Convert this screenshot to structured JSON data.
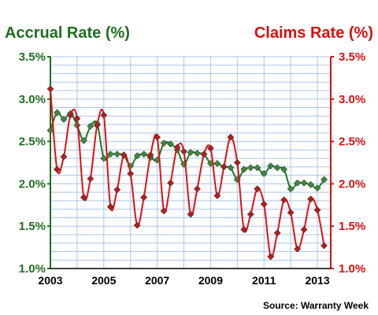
{
  "chart_data": {
    "type": "line",
    "left_title": "Accrual Rate (%)",
    "right_title": "Claims Rate (%)",
    "source": "Source: Warranty Week",
    "x_ticks": [
      "2003",
      "2005",
      "2007",
      "2009",
      "2011",
      "2013"
    ],
    "y_ticks": [
      "1.0%",
      "1.5%",
      "2.0%",
      "2.5%",
      "3.0%",
      "3.5%"
    ],
    "y_tick_values": [
      1.0,
      1.5,
      2.0,
      2.5,
      3.0,
      3.5
    ],
    "ylim": [
      1.0,
      3.5
    ],
    "x_quarter_labels": [
      "2003 Q1",
      "2003 Q2",
      "2003 Q3",
      "2003 Q4",
      "2004 Q1",
      "2004 Q2",
      "2004 Q3",
      "2004 Q4",
      "2005 Q1",
      "2005 Q2",
      "2005 Q3",
      "2005 Q4",
      "2006 Q1",
      "2006 Q2",
      "2006 Q3",
      "2006 Q4",
      "2007 Q1",
      "2007 Q2",
      "2007 Q3",
      "2007 Q4",
      "2008 Q1",
      "2008 Q2",
      "2008 Q3",
      "2008 Q4",
      "2009 Q1",
      "2009 Q2",
      "2009 Q3",
      "2009 Q4",
      "2010 Q1",
      "2010 Q2",
      "2010 Q3",
      "2010 Q4",
      "2011 Q1",
      "2011 Q2",
      "2011 Q3",
      "2011 Q4",
      "2012 Q1",
      "2012 Q2",
      "2012 Q3",
      "2012 Q4",
      "2013 Q1",
      "2013 Q2"
    ],
    "series": [
      {
        "name": "Accrual Rate (%)",
        "color": "#1a7a1a",
        "marker_color": "#3c8c3c",
        "values": [
          2.63,
          2.84,
          2.76,
          2.83,
          2.69,
          2.51,
          2.68,
          2.71,
          2.3,
          2.35,
          2.35,
          2.34,
          2.21,
          2.33,
          2.35,
          2.31,
          2.28,
          2.48,
          2.47,
          2.4,
          2.23,
          2.37,
          2.36,
          2.35,
          2.24,
          2.24,
          2.2,
          2.19,
          2.05,
          2.17,
          2.19,
          2.19,
          2.12,
          2.21,
          2.19,
          2.17,
          1.94,
          2.01,
          2.01,
          1.99,
          1.95,
          2.05
        ]
      },
      {
        "name": "Claims Rate (%)",
        "color": "#e01010",
        "marker_color": "#c01818",
        "values": [
          3.12,
          2.17,
          2.32,
          2.81,
          2.77,
          1.84,
          2.06,
          2.69,
          2.81,
          1.73,
          1.93,
          2.34,
          2.12,
          1.51,
          1.84,
          2.34,
          2.55,
          1.68,
          2.01,
          2.43,
          2.38,
          1.64,
          1.94,
          2.35,
          2.42,
          1.86,
          2.2,
          2.55,
          2.25,
          1.46,
          1.64,
          1.94,
          1.76,
          1.14,
          1.42,
          1.81,
          1.66,
          1.23,
          1.46,
          1.82,
          1.69,
          1.27
        ]
      }
    ]
  }
}
